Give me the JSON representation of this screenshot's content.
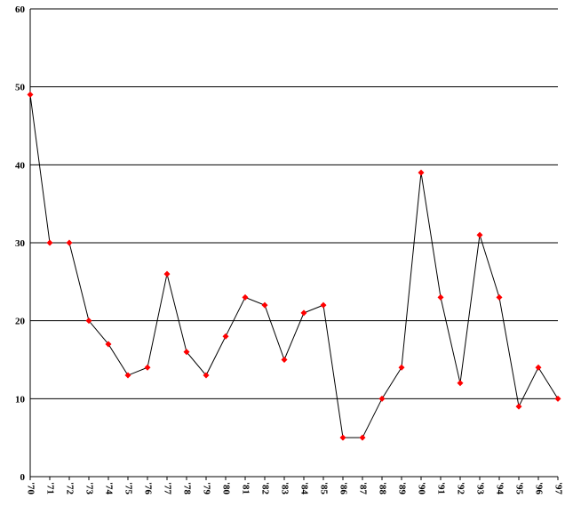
{
  "chart_data": {
    "type": "line",
    "categories": [
      "'70",
      "'71",
      "'72",
      "'73",
      "'74",
      "'75",
      "'76",
      "'77",
      "'78",
      "'79",
      "'80",
      "'81",
      "'82",
      "'83",
      "'84",
      "'85",
      "'86",
      "'87",
      "'88",
      "'89",
      "'90",
      "'91",
      "'92",
      "'93",
      "'94",
      "'95",
      "'96",
      "'97"
    ],
    "series": [
      {
        "color": "#ff0000",
        "values": [
          49,
          30,
          30,
          20,
          17,
          13,
          14,
          26,
          16,
          13,
          18,
          23,
          22,
          15,
          21,
          22,
          5,
          5,
          10,
          14,
          39,
          23,
          12,
          31,
          23,
          9,
          14,
          10
        ]
      }
    ],
    "ylim": [
      0,
      60
    ],
    "yticks": [
      0,
      10,
      20,
      30,
      40,
      50,
      60
    ],
    "grid": true
  }
}
